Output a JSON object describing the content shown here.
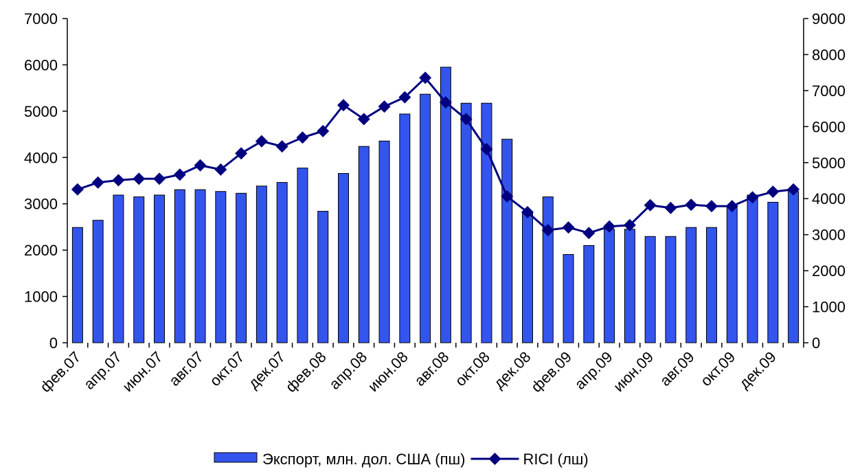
{
  "chart_data": {
    "type": "bar_line",
    "categories": [
      "фев.07",
      null,
      "апр.07",
      null,
      "июн.07",
      null,
      "авг.07",
      null,
      "окт.07",
      null,
      "дек.07",
      null,
      "фев.08",
      null,
      "апр.08",
      null,
      "июн.08",
      null,
      "авг.08",
      null,
      "окт.08",
      null,
      "дек.08",
      null,
      "фев.09",
      null,
      "апр.09",
      null,
      "июн.09",
      null,
      "авг.09",
      null,
      "окт.09",
      null,
      "дек.09",
      null
    ],
    "series": [
      {
        "name": "Экспорт, млн. дол. США (пш)",
        "type": "bar",
        "axis": "y2",
        "color": "#3355ee",
        "values": [
          3200,
          3400,
          4100,
          4050,
          4100,
          4250,
          4250,
          4200,
          4150,
          4350,
          4450,
          4850,
          3650,
          4700,
          5450,
          5600,
          6350,
          6900,
          7650,
          6650,
          6650,
          5650,
          3600,
          4050,
          2450,
          2700,
          3150,
          3150,
          2950,
          2950,
          3200,
          3200,
          3750,
          4100,
          3900,
          4200
        ]
      },
      {
        "name": "RICI (лш)",
        "type": "line",
        "axis": "y",
        "color": "#000080",
        "values": [
          3310,
          3460,
          3510,
          3540,
          3540,
          3630,
          3830,
          3740,
          4090,
          4350,
          4240,
          4430,
          4570,
          5130,
          4830,
          5100,
          5300,
          5720,
          5190,
          4830,
          4180,
          3160,
          2820,
          2430,
          2490,
          2370,
          2510,
          2540,
          2970,
          2910,
          2980,
          2950,
          2950,
          3140,
          3260,
          3310
        ]
      }
    ],
    "ylim": [
      0,
      7000
    ],
    "yticks": [
      0,
      1000,
      2000,
      3000,
      4000,
      5000,
      6000,
      7000
    ],
    "y2lim": [
      0,
      9000
    ],
    "y2ticks": [
      0,
      1000,
      2000,
      3000,
      4000,
      5000,
      6000,
      7000,
      8000,
      9000
    ],
    "legend": "bottom"
  }
}
